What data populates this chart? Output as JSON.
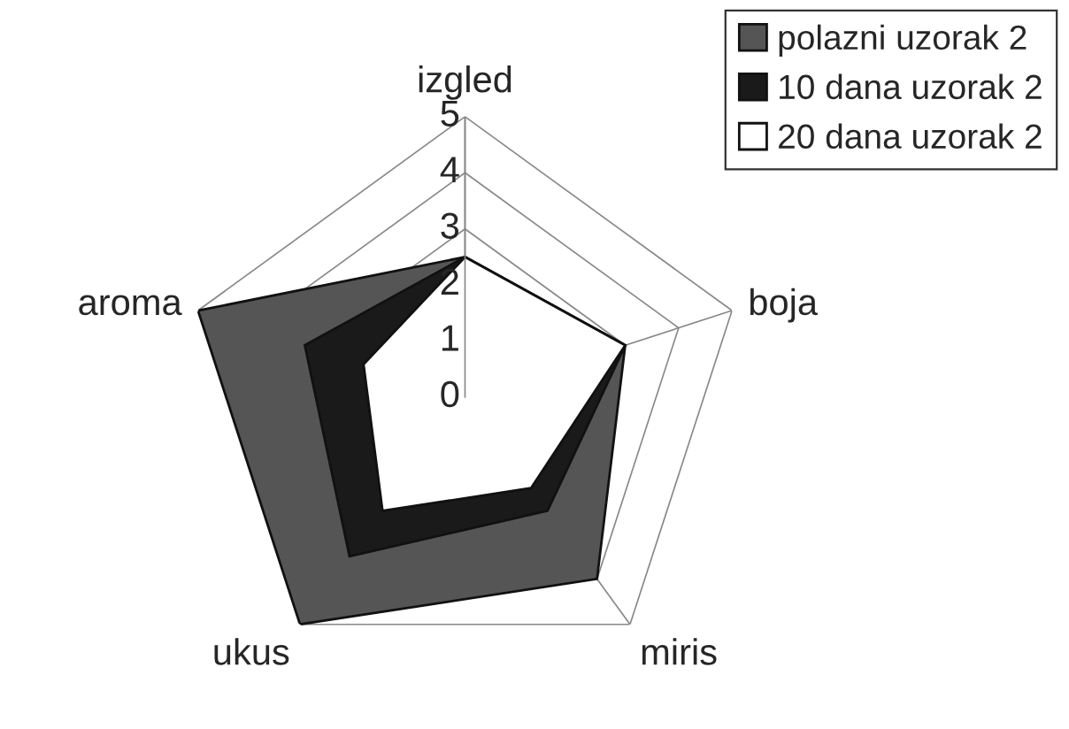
{
  "chart_data": {
    "type": "radar",
    "categories": [
      "izgled",
      "boja",
      "miris",
      "ukus",
      "aroma"
    ],
    "ylim": [
      0,
      5
    ],
    "yticks": [
      0,
      1,
      2,
      3,
      4,
      5
    ],
    "grid": true,
    "legend": "top right",
    "series": [
      {
        "name": "polazni uzorak 2",
        "color": "#555555",
        "values": [
          2.5,
          3.0,
          4.0,
          5.0,
          5.0
        ]
      },
      {
        "name": "10 dana uzorak 2",
        "color": "#1a1a1a",
        "values": [
          2.5,
          3.0,
          2.5,
          3.5,
          3.0
        ]
      },
      {
        "name": "20 dana uzorak 2",
        "color": "#ffffff",
        "values": [
          2.5,
          3.0,
          2.0,
          2.5,
          1.9
        ]
      }
    ]
  }
}
